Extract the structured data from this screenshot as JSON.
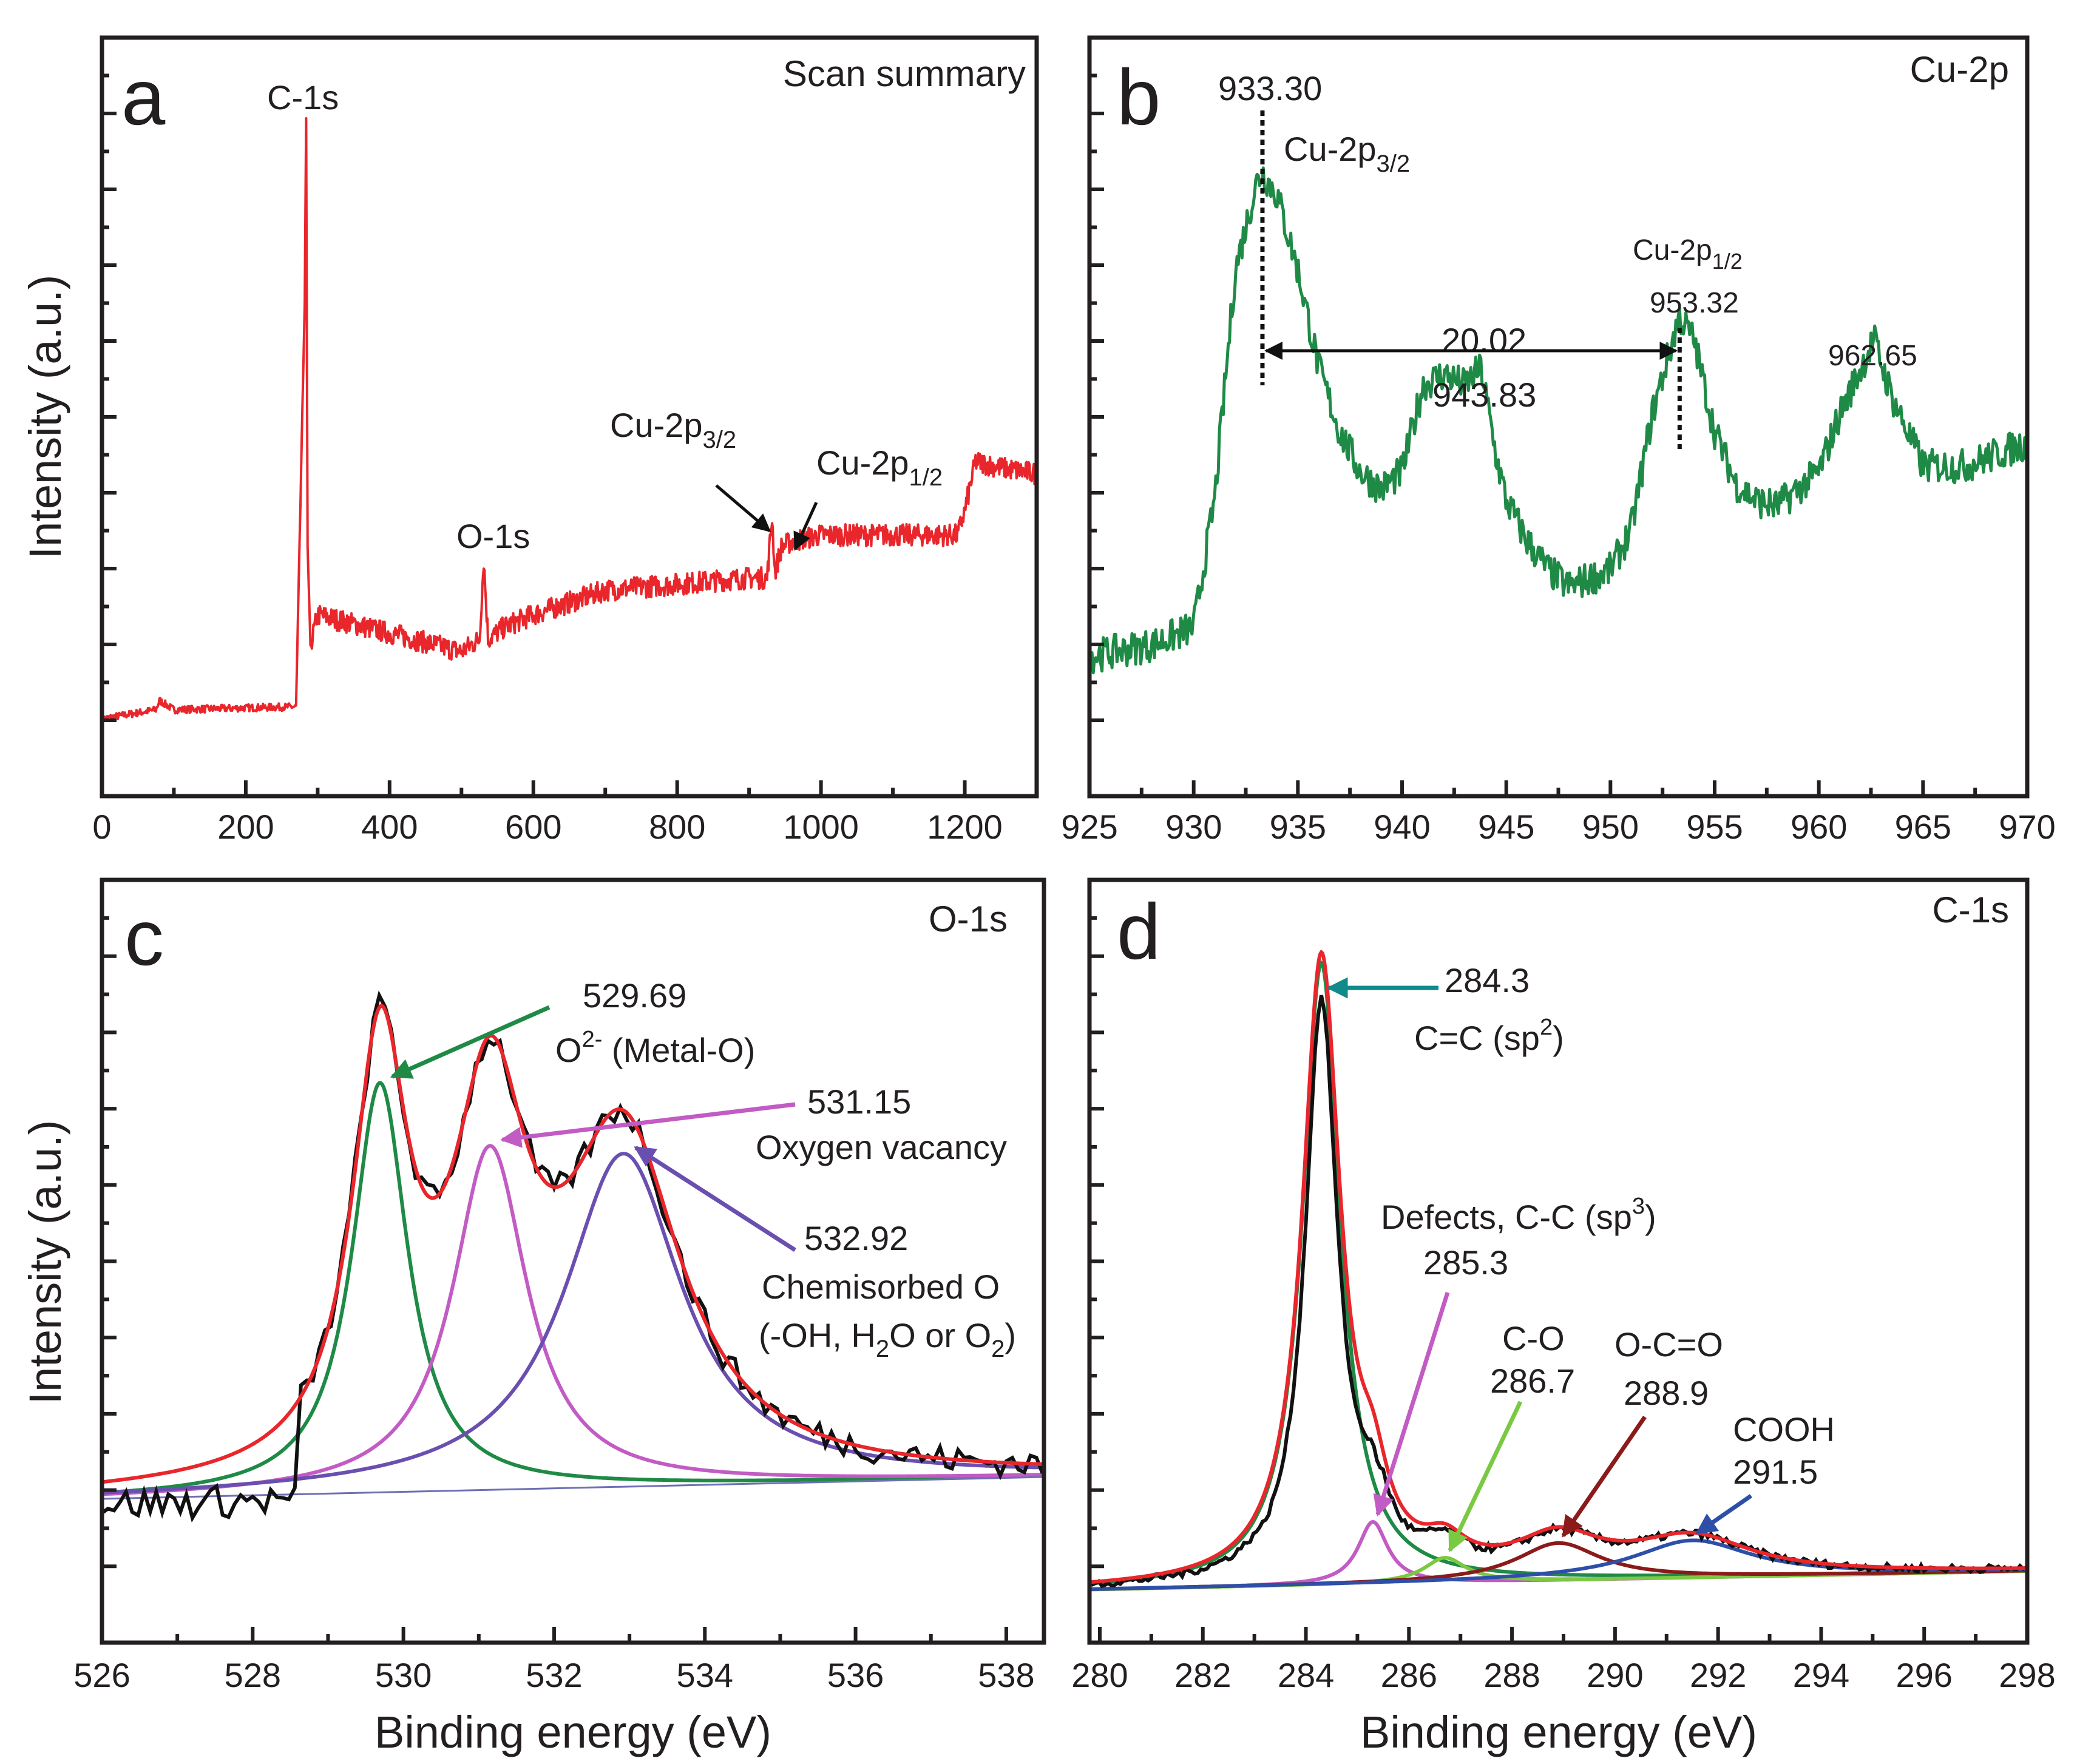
{
  "colors": {
    "survey": "#e8262b",
    "cu2p": "#1f8a46",
    "raw": "#111111",
    "envelope": "#e8262b",
    "o_metal": "#1f8a46",
    "o_vacancy": "#c25bc4",
    "o_chem": "#6a4fb0",
    "baseline": "#6f6fb5",
    "c_sp2": "#1f8a46",
    "c_defect": "#c25bc4",
    "c_co": "#7ac943",
    "c_oco": "#8b1a1a",
    "c_cooh": "#2e4fa8",
    "arrow_sp2": "#108a8a"
  },
  "chart_data": [
    {
      "panel": "a",
      "type": "line",
      "title": "Scan summary",
      "xlabel": "",
      "ylabel": "Intensity (a.u.)",
      "xlim": [
        0,
        1300
      ],
      "ylim": [
        0,
        100
      ],
      "x_ticks": [
        0,
        200,
        400,
        600,
        800,
        1000,
        1200
      ],
      "series": [
        {
          "name": "Survey",
          "x": [
            0,
            50,
            75,
            80,
            100,
            200,
            270,
            282,
            284,
            286,
            290,
            300,
            400,
            500,
            525,
            531,
            537,
            560,
            600,
            700,
            800,
            900,
            925,
            932,
            936,
            945,
            960,
            1000,
            1100,
            1190,
            1200,
            1215,
            1250,
            1300
          ],
          "y": [
            2,
            3,
            3.5,
            5,
            3.5,
            3.8,
            4,
            70,
            100,
            30,
            14,
            19,
            16,
            13,
            15,
            28,
            15,
            17,
            19,
            23,
            24,
            25,
            25,
            35,
            26,
            30,
            31,
            32,
            32,
            32,
            36,
            44,
            43,
            42
          ]
        }
      ],
      "annotations": [
        {
          "text": "C-1s",
          "x": 285,
          "y": 100
        },
        {
          "text": "O-1s",
          "x": 531,
          "y": 28
        },
        {
          "text": "Cu-2p",
          "sub": "3/2",
          "x": 933,
          "y": 35
        },
        {
          "text": "Cu-2p",
          "sub": "1/2",
          "x": 953,
          "y": 31
        }
      ]
    },
    {
      "panel": "b",
      "type": "line",
      "title": "Cu-2p",
      "xlabel": "",
      "ylabel": "",
      "xlim": [
        925,
        970
      ],
      "ylim": [
        0,
        100
      ],
      "x_ticks": [
        925,
        930,
        935,
        940,
        945,
        950,
        955,
        960,
        965,
        970
      ],
      "series": [
        {
          "name": "Cu-2p",
          "x": [
            925,
            928,
            930,
            931,
            932,
            933,
            933.3,
            934,
            935,
            936,
            937,
            938,
            939,
            940,
            941,
            942,
            943,
            943.8,
            944.5,
            945,
            946,
            947,
            948,
            950,
            951,
            952,
            953.3,
            954,
            955,
            956,
            957,
            958,
            960,
            961,
            962.65,
            963.5,
            965,
            967,
            970
          ],
          "y": [
            13,
            15,
            18,
            40,
            80,
            95,
            97,
            93,
            80,
            63,
            52,
            45,
            42,
            45,
            60,
            62,
            60,
            63,
            48,
            40,
            33,
            28,
            25,
            28,
            35,
            55,
            72,
            68,
            52,
            43,
            40,
            39,
            45,
            55,
            68,
            58,
            46,
            46,
            50
          ]
        }
      ],
      "annotations": [
        {
          "text": "933.30",
          "x": 933.3
        },
        {
          "text": "Cu-2p",
          "sub": "3/2",
          "x": 933.3
        },
        {
          "text": "Cu-2p",
          "sub": "1/2",
          "x": 953.32
        },
        {
          "text": "953.32",
          "x": 953.32
        },
        {
          "text": "20.02",
          "x": 943.3
        },
        {
          "text": "943.83",
          "x": 943.83
        },
        {
          "text": "962.65",
          "x": 962.65
        }
      ]
    },
    {
      "panel": "c",
      "type": "line",
      "title": "O-1s",
      "xlabel": "Binding energy (eV)",
      "ylabel": "Intensity (a.u.)",
      "xlim": [
        526,
        538.5
      ],
      "ylim": [
        0,
        100
      ],
      "x_ticks": [
        526,
        528,
        530,
        532,
        534,
        536,
        538
      ],
      "series": [
        {
          "name": "Raw data",
          "role": "raw"
        },
        {
          "name": "Fitted envelope",
          "role": "envelope"
        },
        {
          "name": "O2- (Metal-O)",
          "center": 529.69,
          "height": 75,
          "width": 0.45
        },
        {
          "name": "Oxygen vacancy",
          "center": 531.15,
          "height": 63,
          "width": 0.6
        },
        {
          "name": "Chemisorbed O",
          "center": 532.92,
          "height": 61,
          "width": 0.95
        },
        {
          "name": "Background",
          "y_start": 10,
          "y_end": 14
        }
      ],
      "annotations": [
        {
          "text": "529.69",
          "label": "O2- (Metal-O)",
          "target": 529.69
        },
        {
          "text": "531.15",
          "label": "Oxygen vacancy",
          "target": 531.15
        },
        {
          "text": "532.92",
          "label": "Chemisorbed O",
          "label2": "(-OH, H2O or O2)",
          "target": 532.92
        }
      ]
    },
    {
      "panel": "d",
      "type": "line",
      "title": "C-1s",
      "xlabel": "Binding energy (eV)",
      "ylabel": "",
      "xlim": [
        279.8,
        298
      ],
      "ylim": [
        0,
        100
      ],
      "x_ticks": [
        280,
        282,
        284,
        286,
        288,
        290,
        292,
        294,
        296,
        298
      ],
      "series": [
        {
          "name": "Raw data",
          "role": "raw"
        },
        {
          "name": "Fitted envelope",
          "role": "envelope"
        },
        {
          "name": "C=C (sp2)",
          "center": 284.3,
          "height": 100,
          "width": 0.45
        },
        {
          "name": "Defects, C-C (sp3)",
          "center": 285.3,
          "height": 10,
          "width": 0.35
        },
        {
          "name": "C-O",
          "center": 286.7,
          "height": 4,
          "width": 0.5
        },
        {
          "name": "O-C=O",
          "center": 288.9,
          "height": 6,
          "width": 1.0
        },
        {
          "name": "COOH",
          "center": 291.5,
          "height": 6,
          "width": 1.4
        },
        {
          "name": "Background",
          "y_start": 1,
          "y_end": 4
        }
      ],
      "annotations": [
        {
          "text": "284.3",
          "label": "C=C (sp2)",
          "target": 284.3
        },
        {
          "text": "285.3",
          "label": "Defects, C-C (sp3)",
          "target": 285.3
        },
        {
          "text": "286.7",
          "label": "C-O",
          "target": 286.7
        },
        {
          "text": "288.9",
          "label": "O-C=O",
          "target": 288.9
        },
        {
          "text": "291.5",
          "label": "COOH",
          "target": 291.5
        }
      ]
    }
  ],
  "labels": {
    "panel_a": "a",
    "panel_b": "b",
    "panel_c": "c",
    "panel_d": "d",
    "a_corner": "Scan summary",
    "a_c1s": "C-1s",
    "a_o1s": "O-1s",
    "a_cu32": "Cu-2p",
    "a_cu32_sub": "3/2",
    "a_cu12": "Cu-2p",
    "a_cu12_sub": "1/2",
    "b_corner": "Cu-2p",
    "b_933": "933.30",
    "b_cu32": "Cu-2p",
    "b_cu32_sub": "3/2",
    "b_cu12": "Cu-2p",
    "b_cu12_sub": "1/2",
    "b_953": "953.32",
    "b_split": "20.02",
    "b_943": "943.83",
    "b_962": "962.65",
    "c_corner": "O-1s",
    "c_529": "529.69",
    "c_metal_pre": "O",
    "c_metal_sup": "2-",
    "c_metal_post": " (Metal-O)",
    "c_531": "531.15",
    "c_vacancy": "Oxygen vacancy",
    "c_532": "532.92",
    "c_chem": "Chemisorbed O",
    "c_chem2_a": "(-OH, H",
    "c_chem2_sub1": "2",
    "c_chem2_b": "O or O",
    "c_chem2_sub2": "2",
    "c_chem2_c": ")",
    "d_corner": "C-1s",
    "d_284": "284.3",
    "d_sp2_pre": "C=C (sp",
    "d_sp2_sup": "2",
    "d_sp2_post": ")",
    "d_def_pre": "Defects, C-C (sp",
    "d_def_sup": "3",
    "d_def_post": ")",
    "d_285": "285.3",
    "d_co": "C-O",
    "d_286": "286.7",
    "d_oco": "O-C=O",
    "d_288": "288.9",
    "d_cooh": "COOH",
    "d_291": "291.5",
    "ylabel_top": "Intensity (a.u.)",
    "ylabel_bottom": "Intensity (a.u.)",
    "xlabel_c": "Binding energy (eV)",
    "xlabel_d": "Binding energy (eV)"
  }
}
